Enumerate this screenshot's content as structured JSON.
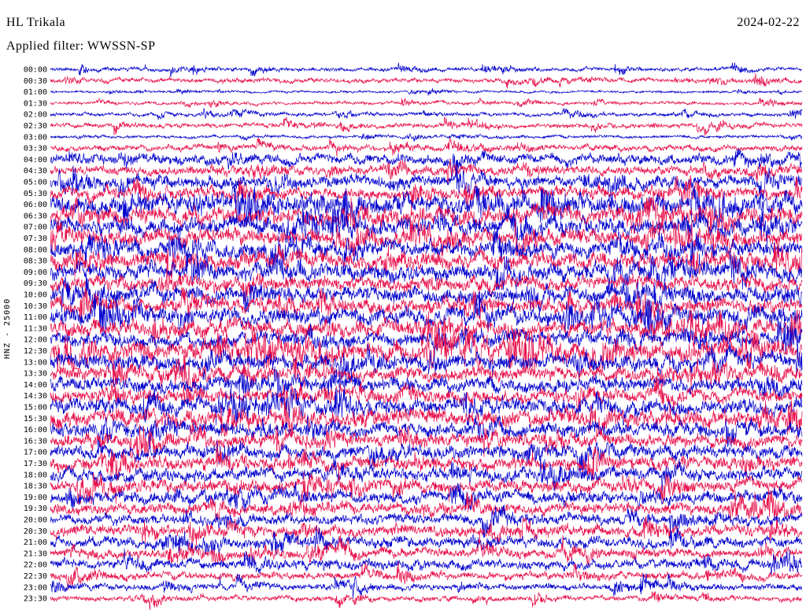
{
  "header": {
    "station": "HL Trikala",
    "date": "2024-02-22",
    "filter": "Applied filter: WWSSN-SP"
  },
  "axis": {
    "left_label": "HNZ - 25000"
  },
  "colors": {
    "blue": "#0000cd",
    "red": "#e8114b",
    "text": "#000000",
    "background": "#ffffff"
  },
  "chart_data": {
    "type": "line",
    "title": "Helicorder seismogram, station HL Trikala, channel HNZ, 2024-02-22, filter WWSSN-SP",
    "minutes_per_row": 30,
    "scale_label": "HNZ - 25000",
    "xlabel": "",
    "ylabel": "",
    "legend": "off",
    "grid": "off",
    "rows": [
      {
        "label": "00:00",
        "color": "blue",
        "amplitude": 0.3
      },
      {
        "label": "00:30",
        "color": "red",
        "amplitude": 0.35
      },
      {
        "label": "01:00",
        "color": "blue",
        "amplitude": 0.18
      },
      {
        "label": "01:30",
        "color": "red",
        "amplitude": 0.25
      },
      {
        "label": "02:00",
        "color": "blue",
        "amplitude": 0.28
      },
      {
        "label": "02:30",
        "color": "red",
        "amplitude": 0.35
      },
      {
        "label": "03:00",
        "color": "blue",
        "amplitude": 0.22
      },
      {
        "label": "03:30",
        "color": "red",
        "amplitude": 0.45
      },
      {
        "label": "04:00",
        "color": "blue",
        "amplitude": 0.8
      },
      {
        "label": "04:30",
        "color": "red",
        "amplitude": 0.7
      },
      {
        "label": "05:00",
        "color": "blue",
        "amplitude": 0.95
      },
      {
        "label": "05:30",
        "color": "red",
        "amplitude": 0.85
      },
      {
        "label": "06:00",
        "color": "blue",
        "amplitude": 1.5
      },
      {
        "label": "06:30",
        "color": "red",
        "amplitude": 1.4
      },
      {
        "label": "07:00",
        "color": "blue",
        "amplitude": 1.3
      },
      {
        "label": "07:30",
        "color": "red",
        "amplitude": 1.25
      },
      {
        "label": "08:00",
        "color": "blue",
        "amplitude": 1.2
      },
      {
        "label": "08:30",
        "color": "red",
        "amplitude": 1.3
      },
      {
        "label": "09:00",
        "color": "blue",
        "amplitude": 1.3
      },
      {
        "label": "09:30",
        "color": "red",
        "amplitude": 1.1
      },
      {
        "label": "10:00",
        "color": "blue",
        "amplitude": 1.2
      },
      {
        "label": "10:30",
        "color": "red",
        "amplitude": 1.1
      },
      {
        "label": "11:00",
        "color": "blue",
        "amplitude": 1.3
      },
      {
        "label": "11:30",
        "color": "red",
        "amplitude": 1.2
      },
      {
        "label": "12:00",
        "color": "blue",
        "amplitude": 1.1
      },
      {
        "label": "12:30",
        "color": "red",
        "amplitude": 1.45
      },
      {
        "label": "13:00",
        "color": "blue",
        "amplitude": 1.2
      },
      {
        "label": "13:30",
        "color": "red",
        "amplitude": 1.05
      },
      {
        "label": "14:00",
        "color": "blue",
        "amplitude": 1.1
      },
      {
        "label": "14:30",
        "color": "red",
        "amplitude": 1.0
      },
      {
        "label": "15:00",
        "color": "blue",
        "amplitude": 1.2
      },
      {
        "label": "15:30",
        "color": "red",
        "amplitude": 1.3
      },
      {
        "label": "16:00",
        "color": "blue",
        "amplitude": 1.1
      },
      {
        "label": "16:30",
        "color": "red",
        "amplitude": 1.0
      },
      {
        "label": "17:00",
        "color": "blue",
        "amplitude": 1.05
      },
      {
        "label": "17:30",
        "color": "red",
        "amplitude": 1.0
      },
      {
        "label": "18:00",
        "color": "blue",
        "amplitude": 1.0
      },
      {
        "label": "18:30",
        "color": "red",
        "amplitude": 0.95
      },
      {
        "label": "19:00",
        "color": "blue",
        "amplitude": 0.9
      },
      {
        "label": "19:30",
        "color": "red",
        "amplitude": 0.85
      },
      {
        "label": "20:00",
        "color": "blue",
        "amplitude": 0.8
      },
      {
        "label": "20:30",
        "color": "red",
        "amplitude": 0.85
      },
      {
        "label": "21:00",
        "color": "blue",
        "amplitude": 0.8
      },
      {
        "label": "21:30",
        "color": "red",
        "amplitude": 0.7
      },
      {
        "label": "22:00",
        "color": "blue",
        "amplitude": 0.75
      },
      {
        "label": "22:30",
        "color": "red",
        "amplitude": 0.6
      },
      {
        "label": "23:00",
        "color": "blue",
        "amplitude": 0.5
      },
      {
        "label": "23:30",
        "color": "red",
        "amplitude": 0.4
      }
    ]
  }
}
